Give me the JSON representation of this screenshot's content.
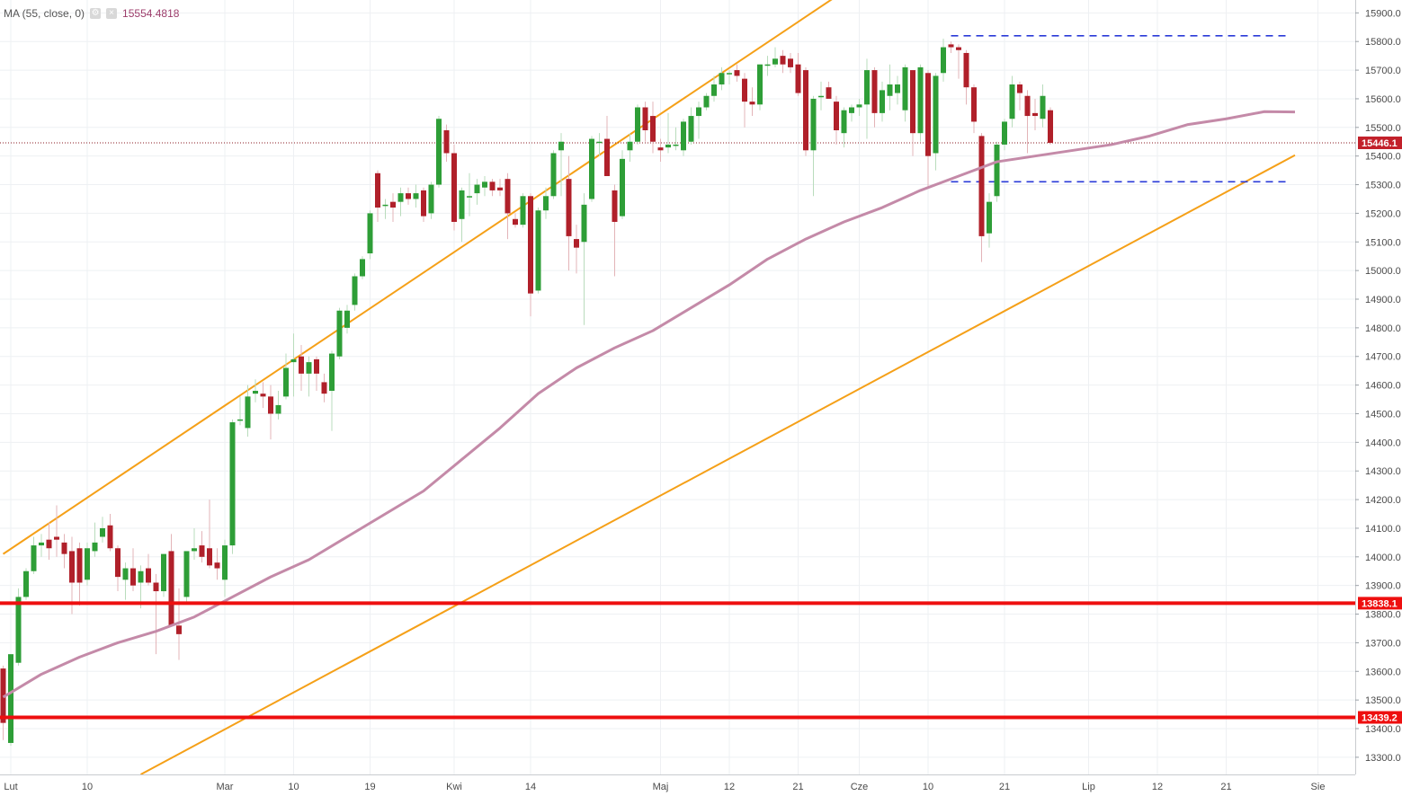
{
  "legend": {
    "indicator": "MA (55, close, 0)",
    "value": "15554.4818",
    "settings_icon": "gear-icon",
    "close_icon": "close-icon"
  },
  "colors": {
    "bull": "#2e9e37",
    "bear": "#b0202a",
    "ma": "#c48aa8",
    "trend": "#f5a018",
    "level": "#ee0f0f",
    "range": "#2a3ad8",
    "last_tag": "#c2202a"
  },
  "chart_data": {
    "type": "candlestick",
    "instrument_note": "",
    "yaxis": {
      "ticks": [
        13300,
        13400,
        13500,
        13600,
        13700,
        13800,
        13900,
        14000,
        14100,
        14200,
        14300,
        14400,
        14500,
        14600,
        14700,
        14800,
        14900,
        15000,
        15100,
        15200,
        15300,
        15400,
        15500,
        15600,
        15700,
        15800,
        15900
      ],
      "tick_labels": [
        "13300.0",
        "13400.0",
        "13500.0",
        "13600.0",
        "13700.0",
        "13800.0",
        "13900.0",
        "14000.0",
        "14100.0",
        "14200.0",
        "14300.0",
        "14400.0",
        "14500.0",
        "14600.0",
        "14700.0",
        "14800.0",
        "14900.0",
        "15000.0",
        "15100.0",
        "15200.0",
        "15300.0",
        "15400.0",
        "15500.0",
        "15600.0",
        "15700.0",
        "15800.0",
        "15900.0"
      ],
      "range": [
        13240,
        15945
      ]
    },
    "xaxis": {
      "labels": [
        {
          "text": "Lut",
          "bar": 1
        },
        {
          "text": "10",
          "bar": 11
        },
        {
          "text": "Mar",
          "bar": 29
        },
        {
          "text": "10",
          "bar": 38
        },
        {
          "text": "19",
          "bar": 48
        },
        {
          "text": "Kwi",
          "bar": 59
        },
        {
          "text": "14",
          "bar": 69
        },
        {
          "text": "Maj",
          "bar": 86
        },
        {
          "text": "12",
          "bar": 95
        },
        {
          "text": "21",
          "bar": 104
        },
        {
          "text": "Cze",
          "bar": 112
        },
        {
          "text": "10",
          "bar": 121
        },
        {
          "text": "21",
          "bar": 131
        },
        {
          "text": "Lip",
          "bar": 142
        },
        {
          "text": "12",
          "bar": 151
        },
        {
          "text": "21",
          "bar": 160
        },
        {
          "text": "Sie",
          "bar": 172
        }
      ]
    },
    "candles": [
      {
        "o": 13610,
        "h": 13620,
        "l": 13360,
        "c": 13420
      },
      {
        "o": 13350,
        "h": 13660,
        "l": 13340,
        "c": 13660
      },
      {
        "o": 13630,
        "h": 13890,
        "l": 13620,
        "c": 13860
      },
      {
        "o": 13860,
        "h": 13960,
        "l": 13850,
        "c": 13950
      },
      {
        "o": 13950,
        "h": 14070,
        "l": 13940,
        "c": 14040
      },
      {
        "o": 14040,
        "h": 14080,
        "l": 14000,
        "c": 14050
      },
      {
        "o": 14060,
        "h": 14120,
        "l": 13990,
        "c": 14030
      },
      {
        "o": 14070,
        "h": 14180,
        "l": 14000,
        "c": 14060
      },
      {
        "o": 14050,
        "h": 14080,
        "l": 13960,
        "c": 14010
      },
      {
        "o": 14020,
        "h": 14070,
        "l": 13800,
        "c": 13910
      },
      {
        "o": 14030,
        "h": 14050,
        "l": 13830,
        "c": 13910
      },
      {
        "o": 13920,
        "h": 14050,
        "l": 13900,
        "c": 14030
      },
      {
        "o": 14020,
        "h": 14120,
        "l": 14000,
        "c": 14050
      },
      {
        "o": 14070,
        "h": 14140,
        "l": 14050,
        "c": 14100
      },
      {
        "o": 14110,
        "h": 14150,
        "l": 14020,
        "c": 14030
      },
      {
        "o": 14030,
        "h": 14040,
        "l": 13880,
        "c": 13930
      },
      {
        "o": 13920,
        "h": 13980,
        "l": 13850,
        "c": 13960
      },
      {
        "o": 13960,
        "h": 14030,
        "l": 13880,
        "c": 13900
      },
      {
        "o": 13910,
        "h": 13970,
        "l": 13820,
        "c": 13950
      },
      {
        "o": 13960,
        "h": 14010,
        "l": 13900,
        "c": 13910
      },
      {
        "o": 13910,
        "h": 13940,
        "l": 13660,
        "c": 13880
      },
      {
        "o": 13880,
        "h": 14010,
        "l": 13860,
        "c": 14010
      },
      {
        "o": 14020,
        "h": 14080,
        "l": 13760,
        "c": 13760
      },
      {
        "o": 13760,
        "h": 13890,
        "l": 13640,
        "c": 13730
      },
      {
        "o": 13860,
        "h": 14020,
        "l": 13840,
        "c": 14020
      },
      {
        "o": 14020,
        "h": 14100,
        "l": 13990,
        "c": 14030
      },
      {
        "o": 14040,
        "h": 14090,
        "l": 13980,
        "c": 14000
      },
      {
        "o": 14030,
        "h": 14200,
        "l": 13960,
        "c": 13970
      },
      {
        "o": 13980,
        "h": 14030,
        "l": 13920,
        "c": 13960
      },
      {
        "o": 13920,
        "h": 14060,
        "l": 13860,
        "c": 14040
      },
      {
        "o": 14040,
        "h": 14480,
        "l": 14010,
        "c": 14470
      },
      {
        "o": 14480,
        "h": 14560,
        "l": 14460,
        "c": 14480
      },
      {
        "o": 14450,
        "h": 14600,
        "l": 14420,
        "c": 14560
      },
      {
        "o": 14570,
        "h": 14620,
        "l": 14540,
        "c": 14580
      },
      {
        "o": 14570,
        "h": 14610,
        "l": 14520,
        "c": 14560
      },
      {
        "o": 14560,
        "h": 14600,
        "l": 14410,
        "c": 14500
      },
      {
        "o": 14500,
        "h": 14580,
        "l": 14480,
        "c": 14530
      },
      {
        "o": 14560,
        "h": 14710,
        "l": 14550,
        "c": 14660
      },
      {
        "o": 14680,
        "h": 14780,
        "l": 14560,
        "c": 14690
      },
      {
        "o": 14700,
        "h": 14740,
        "l": 14580,
        "c": 14640
      },
      {
        "o": 14640,
        "h": 14700,
        "l": 14560,
        "c": 14680
      },
      {
        "o": 14690,
        "h": 14700,
        "l": 14580,
        "c": 14640
      },
      {
        "o": 14610,
        "h": 14640,
        "l": 14540,
        "c": 14570
      },
      {
        "o": 14580,
        "h": 14720,
        "l": 14440,
        "c": 14710
      },
      {
        "o": 14700,
        "h": 14870,
        "l": 14690,
        "c": 14860
      },
      {
        "o": 14800,
        "h": 14880,
        "l": 14780,
        "c": 14860
      },
      {
        "o": 14880,
        "h": 14990,
        "l": 14860,
        "c": 14980
      },
      {
        "o": 14980,
        "h": 15050,
        "l": 14970,
        "c": 15040
      },
      {
        "o": 15060,
        "h": 15210,
        "l": 15040,
        "c": 15200
      },
      {
        "o": 15340,
        "h": 15350,
        "l": 15170,
        "c": 15220
      },
      {
        "o": 15230,
        "h": 15250,
        "l": 15180,
        "c": 15230
      },
      {
        "o": 15240,
        "h": 15270,
        "l": 15170,
        "c": 15220
      },
      {
        "o": 15240,
        "h": 15290,
        "l": 15190,
        "c": 15270
      },
      {
        "o": 15270,
        "h": 15290,
        "l": 15230,
        "c": 15250
      },
      {
        "o": 15250,
        "h": 15300,
        "l": 15220,
        "c": 15270
      },
      {
        "o": 15280,
        "h": 15290,
        "l": 15170,
        "c": 15190
      },
      {
        "o": 15200,
        "h": 15310,
        "l": 15180,
        "c": 15300
      },
      {
        "o": 15300,
        "h": 15540,
        "l": 15290,
        "c": 15530
      },
      {
        "o": 15490,
        "h": 15510,
        "l": 15380,
        "c": 15410
      },
      {
        "o": 15410,
        "h": 15440,
        "l": 15140,
        "c": 15170
      },
      {
        "o": 15180,
        "h": 15290,
        "l": 15100,
        "c": 15280
      },
      {
        "o": 15260,
        "h": 15340,
        "l": 15190,
        "c": 15260
      },
      {
        "o": 15270,
        "h": 15320,
        "l": 15230,
        "c": 15300
      },
      {
        "o": 15290,
        "h": 15330,
        "l": 15260,
        "c": 15310
      },
      {
        "o": 15310,
        "h": 15320,
        "l": 15260,
        "c": 15280
      },
      {
        "o": 15290,
        "h": 15320,
        "l": 15260,
        "c": 15280
      },
      {
        "o": 15320,
        "h": 15340,
        "l": 15110,
        "c": 15200
      },
      {
        "o": 15180,
        "h": 15200,
        "l": 15150,
        "c": 15160
      },
      {
        "o": 15160,
        "h": 15270,
        "l": 15150,
        "c": 15260
      },
      {
        "o": 15260,
        "h": 15270,
        "l": 14840,
        "c": 14920
      },
      {
        "o": 14930,
        "h": 15220,
        "l": 14920,
        "c": 15210
      },
      {
        "o": 15210,
        "h": 15290,
        "l": 15180,
        "c": 15260
      },
      {
        "o": 15260,
        "h": 15420,
        "l": 15250,
        "c": 15410
      },
      {
        "o": 15420,
        "h": 15480,
        "l": 15260,
        "c": 15450
      },
      {
        "o": 15320,
        "h": 15400,
        "l": 15000,
        "c": 15120
      },
      {
        "o": 15110,
        "h": 15160,
        "l": 14990,
        "c": 15080
      },
      {
        "o": 15100,
        "h": 15270,
        "l": 14810,
        "c": 15230
      },
      {
        "o": 15250,
        "h": 15470,
        "l": 15240,
        "c": 15460
      },
      {
        "o": 15450,
        "h": 15480,
        "l": 15400,
        "c": 15450
      },
      {
        "o": 15460,
        "h": 15540,
        "l": 15330,
        "c": 15330
      },
      {
        "o": 15280,
        "h": 15300,
        "l": 14980,
        "c": 15170
      },
      {
        "o": 15190,
        "h": 15420,
        "l": 15180,
        "c": 15390
      },
      {
        "o": 15420,
        "h": 15480,
        "l": 15380,
        "c": 15450
      },
      {
        "o": 15450,
        "h": 15580,
        "l": 15440,
        "c": 15570
      },
      {
        "o": 15570,
        "h": 15590,
        "l": 15450,
        "c": 15490
      },
      {
        "o": 15540,
        "h": 15590,
        "l": 15410,
        "c": 15450
      },
      {
        "o": 15430,
        "h": 15460,
        "l": 15380,
        "c": 15420
      },
      {
        "o": 15430,
        "h": 15550,
        "l": 15410,
        "c": 15440
      },
      {
        "o": 15440,
        "h": 15500,
        "l": 15420,
        "c": 15440
      },
      {
        "o": 15420,
        "h": 15530,
        "l": 15400,
        "c": 15520
      },
      {
        "o": 15450,
        "h": 15570,
        "l": 15440,
        "c": 15540
      },
      {
        "o": 15540,
        "h": 15590,
        "l": 15460,
        "c": 15570
      },
      {
        "o": 15570,
        "h": 15620,
        "l": 15560,
        "c": 15610
      },
      {
        "o": 15610,
        "h": 15680,
        "l": 15590,
        "c": 15650
      },
      {
        "o": 15650,
        "h": 15710,
        "l": 15630,
        "c": 15690
      },
      {
        "o": 15690,
        "h": 15700,
        "l": 15650,
        "c": 15690
      },
      {
        "o": 15700,
        "h": 15720,
        "l": 15660,
        "c": 15680
      },
      {
        "o": 15670,
        "h": 15690,
        "l": 15500,
        "c": 15590
      },
      {
        "o": 15590,
        "h": 15640,
        "l": 15540,
        "c": 15580
      },
      {
        "o": 15580,
        "h": 15720,
        "l": 15560,
        "c": 15720
      },
      {
        "o": 15720,
        "h": 15750,
        "l": 15680,
        "c": 15720
      },
      {
        "o": 15720,
        "h": 15780,
        "l": 15710,
        "c": 15740
      },
      {
        "o": 15750,
        "h": 15770,
        "l": 15690,
        "c": 15720
      },
      {
        "o": 15740,
        "h": 15760,
        "l": 15690,
        "c": 15710
      },
      {
        "o": 15720,
        "h": 15760,
        "l": 15610,
        "c": 15620
      },
      {
        "o": 15700,
        "h": 15710,
        "l": 15400,
        "c": 15420
      },
      {
        "o": 15420,
        "h": 15610,
        "l": 15260,
        "c": 15600
      },
      {
        "o": 15610,
        "h": 15660,
        "l": 15560,
        "c": 15610
      },
      {
        "o": 15640,
        "h": 15660,
        "l": 15600,
        "c": 15600
      },
      {
        "o": 15590,
        "h": 15610,
        "l": 15440,
        "c": 15490
      },
      {
        "o": 15480,
        "h": 15570,
        "l": 15430,
        "c": 15560
      },
      {
        "o": 15550,
        "h": 15580,
        "l": 15520,
        "c": 15570
      },
      {
        "o": 15570,
        "h": 15600,
        "l": 15540,
        "c": 15580
      },
      {
        "o": 15580,
        "h": 15740,
        "l": 15460,
        "c": 15700
      },
      {
        "o": 15700,
        "h": 15710,
        "l": 15500,
        "c": 15550
      },
      {
        "o": 15550,
        "h": 15660,
        "l": 15520,
        "c": 15630
      },
      {
        "o": 15610,
        "h": 15720,
        "l": 15560,
        "c": 15650
      },
      {
        "o": 15620,
        "h": 15680,
        "l": 15580,
        "c": 15650
      },
      {
        "o": 15560,
        "h": 15720,
        "l": 15520,
        "c": 15710
      },
      {
        "o": 15700,
        "h": 15700,
        "l": 15400,
        "c": 15480
      },
      {
        "o": 15480,
        "h": 15720,
        "l": 15450,
        "c": 15710
      },
      {
        "o": 15690,
        "h": 15700,
        "l": 15290,
        "c": 15400
      },
      {
        "o": 15410,
        "h": 15690,
        "l": 15350,
        "c": 15680
      },
      {
        "o": 15690,
        "h": 15810,
        "l": 15660,
        "c": 15780
      },
      {
        "o": 15790,
        "h": 15800,
        "l": 15760,
        "c": 15780
      },
      {
        "o": 15780,
        "h": 15790,
        "l": 15670,
        "c": 15770
      },
      {
        "o": 15760,
        "h": 15770,
        "l": 15580,
        "c": 15640
      },
      {
        "o": 15640,
        "h": 15650,
        "l": 15480,
        "c": 15520
      },
      {
        "o": 15470,
        "h": 15480,
        "l": 15030,
        "c": 15120
      },
      {
        "o": 15130,
        "h": 15270,
        "l": 15080,
        "c": 15240
      },
      {
        "o": 15260,
        "h": 15450,
        "l": 15240,
        "c": 15440
      },
      {
        "o": 15440,
        "h": 15530,
        "l": 15420,
        "c": 15520
      },
      {
        "o": 15530,
        "h": 15680,
        "l": 15500,
        "c": 15650
      },
      {
        "o": 15650,
        "h": 15660,
        "l": 15560,
        "c": 15620
      },
      {
        "o": 15610,
        "h": 15630,
        "l": 15410,
        "c": 15540
      },
      {
        "o": 15550,
        "h": 15600,
        "l": 15490,
        "c": 15540
      },
      {
        "o": 15530,
        "h": 15650,
        "l": 15500,
        "c": 15610
      },
      {
        "o": 15560,
        "h": 15570,
        "l": 15440,
        "c": 15446
      }
    ],
    "ma": {
      "label": "MA (55, close, 0)",
      "points": [
        [
          0,
          13510
        ],
        [
          5,
          13590
        ],
        [
          10,
          13650
        ],
        [
          15,
          13700
        ],
        [
          20,
          13740
        ],
        [
          25,
          13790
        ],
        [
          30,
          13860
        ],
        [
          35,
          13930
        ],
        [
          40,
          13990
        ],
        [
          45,
          14070
        ],
        [
          50,
          14150
        ],
        [
          55,
          14230
        ],
        [
          60,
          14340
        ],
        [
          65,
          14450
        ],
        [
          70,
          14570
        ],
        [
          75,
          14660
        ],
        [
          80,
          14730
        ],
        [
          85,
          14790
        ],
        [
          90,
          14870
        ],
        [
          95,
          14950
        ],
        [
          100,
          15040
        ],
        [
          105,
          15110
        ],
        [
          110,
          15170
        ],
        [
          115,
          15220
        ],
        [
          120,
          15280
        ],
        [
          125,
          15330
        ],
        [
          130,
          15380
        ],
        [
          135,
          15400
        ],
        [
          140,
          15420
        ],
        [
          145,
          15440
        ],
        [
          150,
          15470
        ],
        [
          155,
          15510
        ],
        [
          160,
          15530
        ],
        [
          165,
          15555
        ],
        [
          169,
          15554
        ]
      ]
    },
    "horizontal_levels": [
      {
        "value": 13838.1,
        "label": "13838.1"
      },
      {
        "value": 13439.2,
        "label": "13439.2"
      }
    ],
    "last_price": {
      "value": 15446.1,
      "label": "15446.1"
    },
    "range_lines": [
      {
        "value": 15820,
        "from_bar": 124,
        "to_bar": 168
      },
      {
        "value": 15310,
        "from_bar": 124,
        "to_bar": 168
      }
    ],
    "trend_lines": [
      {
        "from": [
          0,
          14010
        ],
        "to": [
          109,
          15958
        ]
      },
      {
        "from": [
          18,
          13240
        ],
        "to": [
          169,
          15403
        ]
      }
    ],
    "grid": true
  }
}
